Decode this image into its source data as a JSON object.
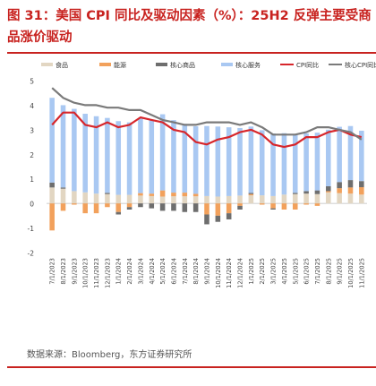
{
  "header": {
    "title_line1": "图 31：美国 CPI 同比及驱动因素（%）：25H2 反弹主要受商",
    "title_line2": "品涨价驱动"
  },
  "footer": {
    "source": "数据来源：Bloomberg，东方证券研究所"
  },
  "colors": {
    "title": "#c8221f",
    "food": "#e2d6c2",
    "energy": "#f2a15c",
    "core_goods": "#6e6e6e",
    "core_services": "#a9c8f2",
    "cpi": "#d7262b",
    "core_cpi": "#7a7a7a"
  },
  "chart_data": {
    "type": "bar",
    "stacked": true,
    "categories": [
      "7/1/2023",
      "8/1/2023",
      "9/1/2023",
      "10/1/2023",
      "11/1/2023",
      "12/1/2023",
      "1/1/2024",
      "2/1/2024",
      "3/1/2024",
      "4/1/2024",
      "5/1/2024",
      "6/1/2024",
      "7/1/2024",
      "8/1/2024",
      "9/1/2024",
      "10/1/2024",
      "11/1/2024",
      "12/1/2024",
      "1/1/2025",
      "2/1/2025",
      "3/1/2025",
      "4/1/2025",
      "5/1/2025",
      "6/1/2025",
      "7/1/2025",
      "8/1/2025",
      "9/1/2025",
      "10/1/2025",
      "11/1/2025"
    ],
    "ylim": [
      -2,
      5
    ],
    "yticks": [
      -2,
      -1,
      0,
      1,
      2,
      3,
      4,
      5
    ],
    "series": [
      {
        "name": "食品",
        "kind": "bar",
        "color": "#e2d6c2",
        "values": [
          0.65,
          0.6,
          0.5,
          0.45,
          0.4,
          0.38,
          0.35,
          0.35,
          0.32,
          0.3,
          0.28,
          0.29,
          0.29,
          0.29,
          0.3,
          0.28,
          0.3,
          0.32,
          0.33,
          0.33,
          0.3,
          0.36,
          0.38,
          0.4,
          0.38,
          0.45,
          0.42,
          0.4,
          0.36
        ]
      },
      {
        "name": "能源",
        "kind": "bar",
        "color": "#f2a15c",
        "values": [
          -1.1,
          -0.3,
          -0.05,
          -0.4,
          -0.4,
          -0.15,
          -0.35,
          -0.15,
          0.1,
          0.1,
          0.25,
          0.15,
          0.15,
          0.1,
          -0.45,
          -0.5,
          -0.4,
          -0.1,
          0.05,
          -0.05,
          -0.2,
          -0.25,
          -0.25,
          -0.05,
          -0.1,
          0.05,
          0.2,
          0.25,
          0.3
        ]
      },
      {
        "name": "核心商品",
        "kind": "bar",
        "color": "#6e6e6e",
        "values": [
          0.2,
          0.05,
          0.0,
          0.0,
          0.0,
          0.05,
          -0.1,
          -0.1,
          -0.15,
          -0.2,
          -0.3,
          -0.3,
          -0.35,
          -0.35,
          -0.4,
          -0.25,
          -0.25,
          -0.15,
          0.05,
          0.0,
          -0.05,
          0.0,
          0.05,
          0.1,
          0.15,
          0.2,
          0.25,
          0.3,
          0.25
        ]
      },
      {
        "name": "核心服务",
        "kind": "bar",
        "color": "#a9c8f2",
        "values": [
          3.45,
          3.35,
          3.35,
          3.2,
          3.15,
          3.05,
          3.0,
          2.95,
          3.05,
          3.0,
          3.1,
          2.95,
          2.8,
          2.75,
          2.85,
          2.85,
          2.8,
          2.75,
          2.7,
          2.65,
          2.55,
          2.5,
          2.4,
          2.35,
          2.35,
          2.3,
          2.25,
          2.2,
          2.05
        ]
      },
      {
        "name": "CPI同比",
        "kind": "line",
        "color": "#d7262b",
        "values": [
          3.2,
          3.7,
          3.7,
          3.2,
          3.1,
          3.3,
          3.1,
          3.2,
          3.5,
          3.4,
          3.3,
          3.0,
          2.9,
          2.5,
          2.4,
          2.6,
          2.7,
          2.9,
          3.0,
          2.8,
          2.4,
          2.3,
          2.4,
          2.7,
          2.7,
          2.9,
          3.0,
          2.8,
          2.7
        ]
      },
      {
        "name": "核心CPI同比",
        "kind": "line",
        "color": "#7a7a7a",
        "values": [
          4.7,
          4.3,
          4.1,
          4.0,
          4.0,
          3.9,
          3.9,
          3.8,
          3.8,
          3.6,
          3.4,
          3.3,
          3.2,
          3.2,
          3.3,
          3.3,
          3.3,
          3.2,
          3.3,
          3.1,
          2.8,
          2.8,
          2.8,
          2.9,
          3.1,
          3.1,
          3.0,
          2.9,
          2.6
        ]
      }
    ]
  }
}
